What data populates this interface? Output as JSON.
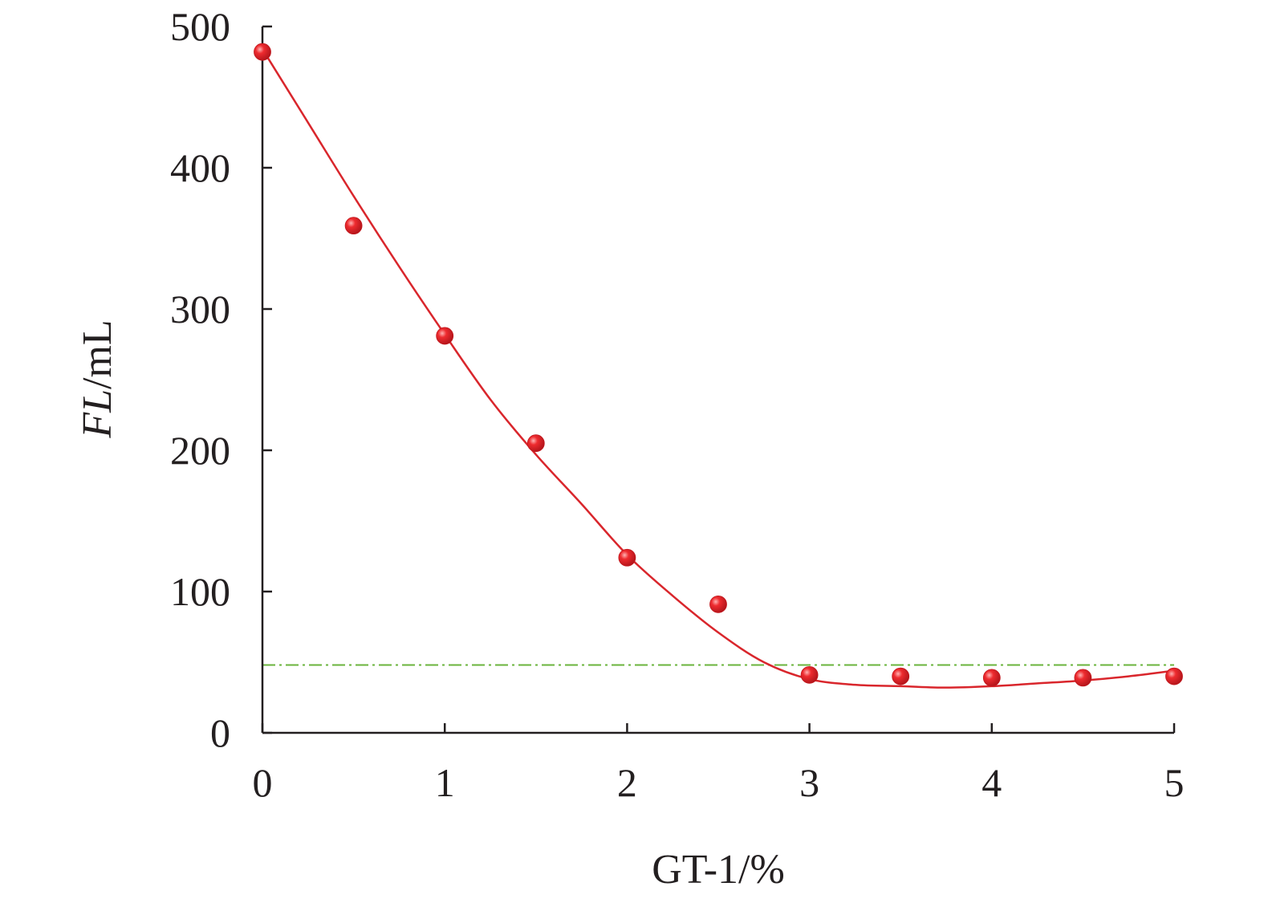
{
  "chart_data": {
    "type": "scatter",
    "title": "",
    "xlabel": "GT-1/%",
    "ylabel": {
      "italic": "FL",
      "rest": "/mL"
    },
    "xlim": [
      0,
      5
    ],
    "ylim": [
      0,
      500
    ],
    "x_ticks": [
      0,
      1,
      2,
      3,
      4,
      5
    ],
    "y_ticks": [
      0,
      100,
      200,
      300,
      400,
      500
    ],
    "x_tick_labels": [
      "0",
      "1",
      "2",
      "3",
      "4",
      "5"
    ],
    "y_tick_labels": [
      "0",
      "100",
      "200",
      "300",
      "400",
      "500"
    ],
    "grid": false,
    "legend": "none",
    "series": [
      {
        "kind": "points",
        "color": "#e3232a",
        "x": [
          0,
          0.5,
          1,
          1.5,
          2,
          2.5,
          3,
          3.5,
          4,
          4.5,
          5
        ],
        "y": [
          482,
          359,
          281,
          205,
          124,
          91,
          41,
          40,
          39,
          39,
          40
        ]
      },
      {
        "kind": "fit-curve",
        "color": "#d9262c",
        "x": [
          0,
          0.25,
          0.5,
          0.75,
          1,
          1.25,
          1.5,
          1.75,
          2,
          2.25,
          2.5,
          2.75,
          3,
          3.25,
          3.5,
          3.75,
          4,
          4.25,
          4.5,
          4.75,
          5
        ],
        "y": [
          484,
          432,
          380,
          330,
          282,
          236,
          197,
          162,
          126,
          97,
          71,
          50,
          38,
          34,
          33,
          32,
          33,
          35,
          37,
          40,
          44
        ]
      },
      {
        "kind": "reference-line",
        "color": "#6ab43d",
        "style": "dash-dot",
        "y": 48
      }
    ]
  }
}
